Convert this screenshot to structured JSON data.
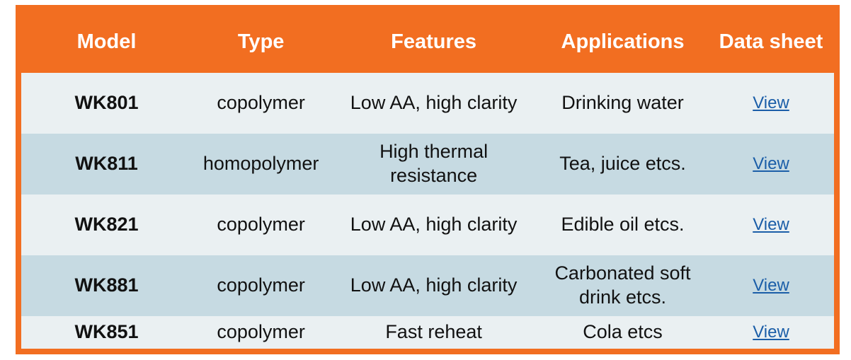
{
  "table": {
    "headers": [
      "Model",
      "Type",
      "Features",
      "Applications",
      "Data sheet"
    ],
    "rows": [
      {
        "model": "WK801",
        "type": "copolymer",
        "features": "Low AA, high clarity",
        "applications": "Drinking water",
        "datasheet_link": "View"
      },
      {
        "model": "WK811",
        "type": "homopolymer",
        "features": "High thermal resistance",
        "applications": "Tea, juice etcs.",
        "datasheet_link": "View"
      },
      {
        "model": "WK821",
        "type": "copolymer",
        "features": "Low AA, high clarity",
        "applications": "Edible oil etcs.",
        "datasheet_link": "View"
      },
      {
        "model": "WK881",
        "type": "copolymer",
        "features": "Low AA, high clarity",
        "applications": "Carbonated soft drink etcs.",
        "datasheet_link": "View"
      },
      {
        "model": "WK851",
        "type": "copolymer",
        "features": "Fast reheat",
        "applications": "Cola etcs",
        "datasheet_link": "View"
      }
    ],
    "colors": {
      "header_bg": "#f26e21",
      "frame_border": "#f26e21",
      "row_light": "#eaf0f2",
      "row_dark": "#c6dae2",
      "link_blue": "#1b5ea8",
      "header_text": "#ffffff"
    }
  }
}
